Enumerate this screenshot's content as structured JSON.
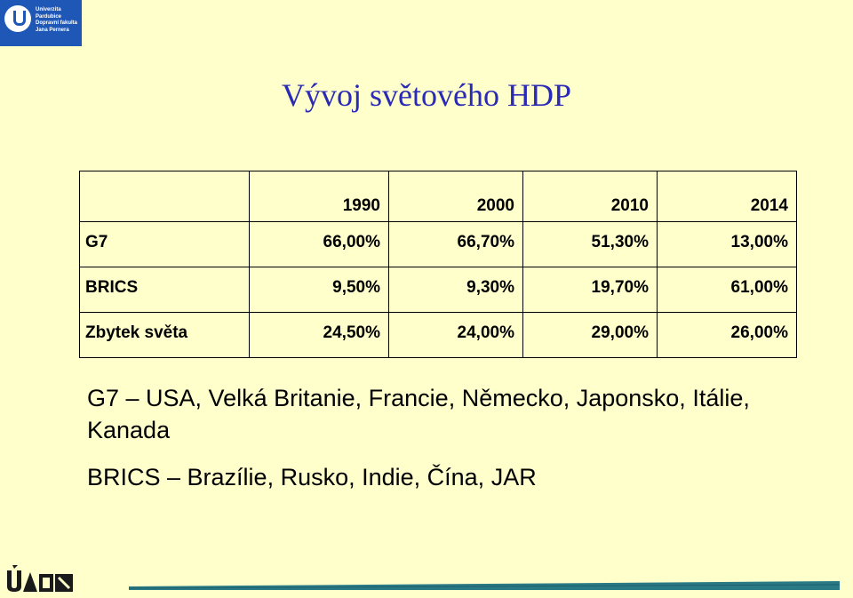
{
  "header_logo": {
    "lines": [
      "Univerzita",
      "Pardubice",
      "Dopravní fakulta",
      "Jana Pernera"
    ]
  },
  "title": "Vývoj světového HDP",
  "table": {
    "header": [
      "",
      "1990",
      "2000",
      "2010",
      "2014"
    ],
    "rows": [
      {
        "label": "G7",
        "values": [
          "66,00%",
          "66,70%",
          "51,30%",
          "13,00%"
        ]
      },
      {
        "label": "BRICS",
        "values": [
          "9,50%",
          "9,30%",
          "19,70%",
          "61,00%"
        ]
      },
      {
        "label": "Zbytek světa",
        "values": [
          "24,50%",
          "24,00%",
          "29,00%",
          "26,00%"
        ]
      }
    ]
  },
  "notes": {
    "g7": "G7 – USA, Velká Britanie, Francie, Německo, Japonsko, Itálie, Kanada",
    "brics": "BRICS – Brazílie, Rusko, Indie, Čína, JAR"
  },
  "footer_logo_text": "ÚADN",
  "colors": {
    "background": "#ffffcc",
    "title": "#2a2ab6",
    "logo_blue": "#1f57b7",
    "footer_bar": "#2a7a86"
  }
}
